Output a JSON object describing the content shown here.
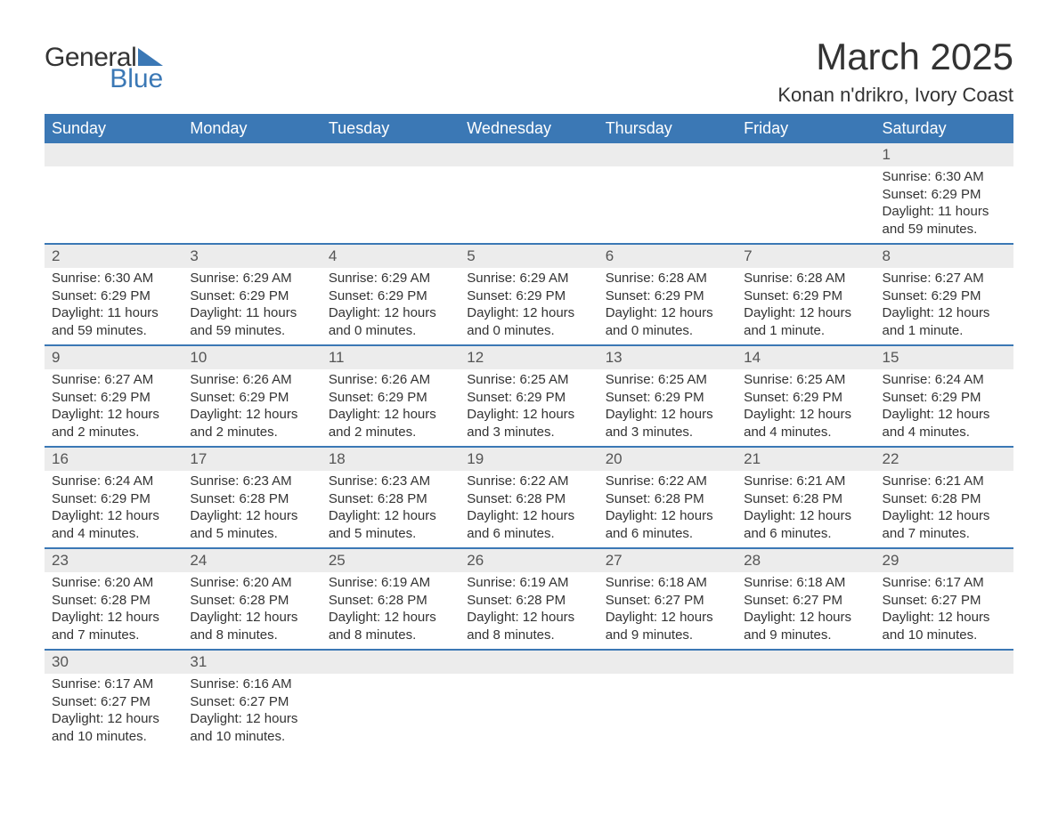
{
  "logo": {
    "general": "General",
    "blue": "Blue"
  },
  "title": "March 2025",
  "subtitle": "Konan n'drikro, Ivory Coast",
  "colors": {
    "header_bg": "#3b78b5",
    "header_text": "#ffffff",
    "daynum_bg": "#ececec",
    "row_border": "#3b78b5",
    "text": "#333333"
  },
  "day_headers": [
    "Sunday",
    "Monday",
    "Tuesday",
    "Wednesday",
    "Thursday",
    "Friday",
    "Saturday"
  ],
  "weeks": [
    [
      null,
      null,
      null,
      null,
      null,
      null,
      {
        "n": "1",
        "sr": "6:30 AM",
        "ss": "6:29 PM",
        "dl": "11 hours and 59 minutes."
      }
    ],
    [
      {
        "n": "2",
        "sr": "6:30 AM",
        "ss": "6:29 PM",
        "dl": "11 hours and 59 minutes."
      },
      {
        "n": "3",
        "sr": "6:29 AM",
        "ss": "6:29 PM",
        "dl": "11 hours and 59 minutes."
      },
      {
        "n": "4",
        "sr": "6:29 AM",
        "ss": "6:29 PM",
        "dl": "12 hours and 0 minutes."
      },
      {
        "n": "5",
        "sr": "6:29 AM",
        "ss": "6:29 PM",
        "dl": "12 hours and 0 minutes."
      },
      {
        "n": "6",
        "sr": "6:28 AM",
        "ss": "6:29 PM",
        "dl": "12 hours and 0 minutes."
      },
      {
        "n": "7",
        "sr": "6:28 AM",
        "ss": "6:29 PM",
        "dl": "12 hours and 1 minute."
      },
      {
        "n": "8",
        "sr": "6:27 AM",
        "ss": "6:29 PM",
        "dl": "12 hours and 1 minute."
      }
    ],
    [
      {
        "n": "9",
        "sr": "6:27 AM",
        "ss": "6:29 PM",
        "dl": "12 hours and 2 minutes."
      },
      {
        "n": "10",
        "sr": "6:26 AM",
        "ss": "6:29 PM",
        "dl": "12 hours and 2 minutes."
      },
      {
        "n": "11",
        "sr": "6:26 AM",
        "ss": "6:29 PM",
        "dl": "12 hours and 2 minutes."
      },
      {
        "n": "12",
        "sr": "6:25 AM",
        "ss": "6:29 PM",
        "dl": "12 hours and 3 minutes."
      },
      {
        "n": "13",
        "sr": "6:25 AM",
        "ss": "6:29 PM",
        "dl": "12 hours and 3 minutes."
      },
      {
        "n": "14",
        "sr": "6:25 AM",
        "ss": "6:29 PM",
        "dl": "12 hours and 4 minutes."
      },
      {
        "n": "15",
        "sr": "6:24 AM",
        "ss": "6:29 PM",
        "dl": "12 hours and 4 minutes."
      }
    ],
    [
      {
        "n": "16",
        "sr": "6:24 AM",
        "ss": "6:29 PM",
        "dl": "12 hours and 4 minutes."
      },
      {
        "n": "17",
        "sr": "6:23 AM",
        "ss": "6:28 PM",
        "dl": "12 hours and 5 minutes."
      },
      {
        "n": "18",
        "sr": "6:23 AM",
        "ss": "6:28 PM",
        "dl": "12 hours and 5 minutes."
      },
      {
        "n": "19",
        "sr": "6:22 AM",
        "ss": "6:28 PM",
        "dl": "12 hours and 6 minutes."
      },
      {
        "n": "20",
        "sr": "6:22 AM",
        "ss": "6:28 PM",
        "dl": "12 hours and 6 minutes."
      },
      {
        "n": "21",
        "sr": "6:21 AM",
        "ss": "6:28 PM",
        "dl": "12 hours and 6 minutes."
      },
      {
        "n": "22",
        "sr": "6:21 AM",
        "ss": "6:28 PM",
        "dl": "12 hours and 7 minutes."
      }
    ],
    [
      {
        "n": "23",
        "sr": "6:20 AM",
        "ss": "6:28 PM",
        "dl": "12 hours and 7 minutes."
      },
      {
        "n": "24",
        "sr": "6:20 AM",
        "ss": "6:28 PM",
        "dl": "12 hours and 8 minutes."
      },
      {
        "n": "25",
        "sr": "6:19 AM",
        "ss": "6:28 PM",
        "dl": "12 hours and 8 minutes."
      },
      {
        "n": "26",
        "sr": "6:19 AM",
        "ss": "6:28 PM",
        "dl": "12 hours and 8 minutes."
      },
      {
        "n": "27",
        "sr": "6:18 AM",
        "ss": "6:27 PM",
        "dl": "12 hours and 9 minutes."
      },
      {
        "n": "28",
        "sr": "6:18 AM",
        "ss": "6:27 PM",
        "dl": "12 hours and 9 minutes."
      },
      {
        "n": "29",
        "sr": "6:17 AM",
        "ss": "6:27 PM",
        "dl": "12 hours and 10 minutes."
      }
    ],
    [
      {
        "n": "30",
        "sr": "6:17 AM",
        "ss": "6:27 PM",
        "dl": "12 hours and 10 minutes."
      },
      {
        "n": "31",
        "sr": "6:16 AM",
        "ss": "6:27 PM",
        "dl": "12 hours and 10 minutes."
      },
      null,
      null,
      null,
      null,
      null
    ]
  ],
  "labels": {
    "sunrise": "Sunrise: ",
    "sunset": "Sunset: ",
    "daylight": "Daylight: "
  }
}
